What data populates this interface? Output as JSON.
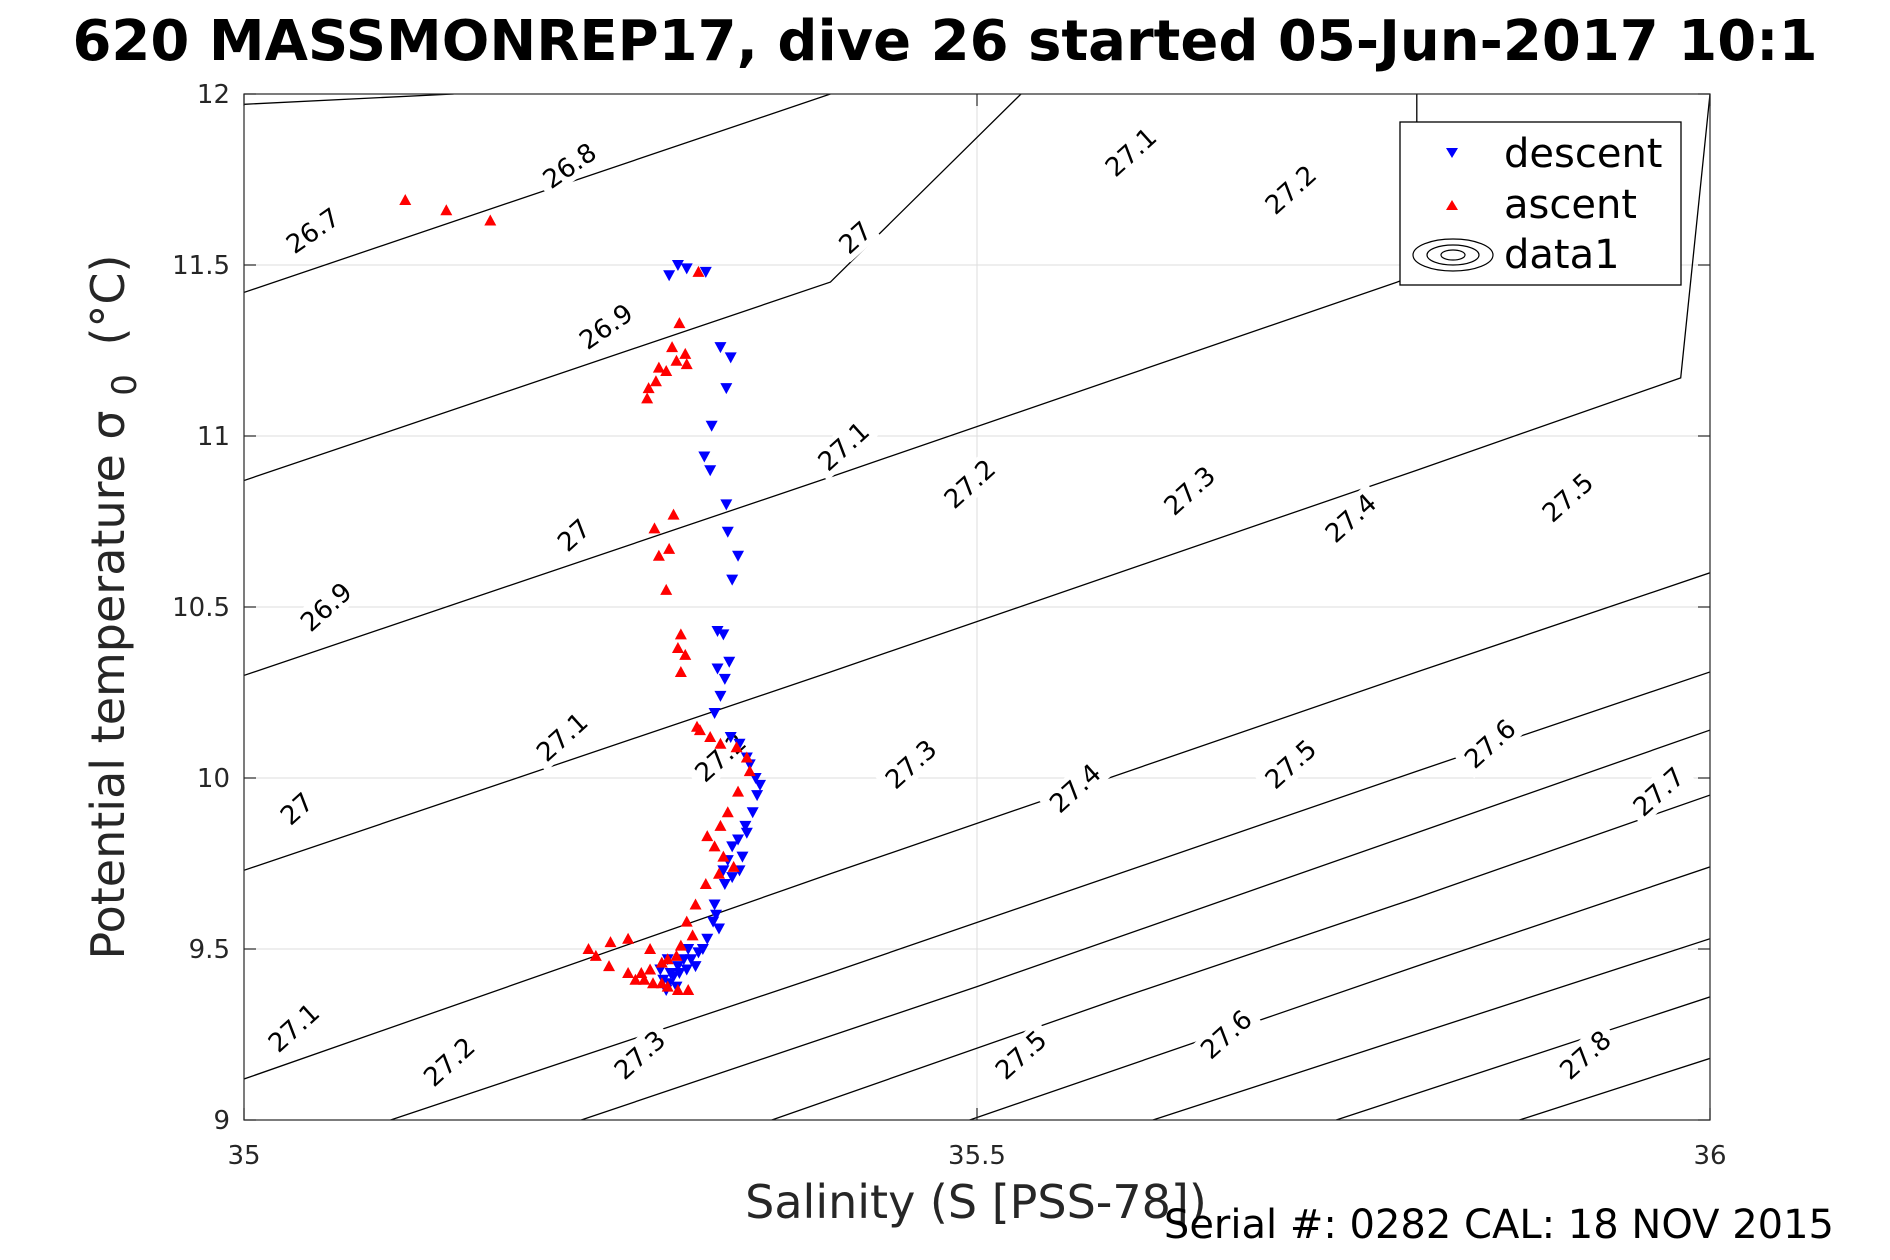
{
  "title": "620 MASSMONREP17, dive 26 started 05-Jun-2017 10:1",
  "footer": "Serial #: 0282  CAL: 18 NOV 2015",
  "chart_data": {
    "type": "scatter",
    "xlabel": "Salinity (S [PSS-78])",
    "ylabel": "Potential temperature σ 0 (°C)",
    "ylabel_main": "Potential temperature σ",
    "ylabel_sub": "0",
    "ylabel_unit": "(°C)",
    "xlim": [
      35,
      36
    ],
    "ylim": [
      9,
      12
    ],
    "xticks": [
      "35",
      "35.5",
      "36"
    ],
    "yticks": [
      "9",
      "9.5",
      "10",
      "10.5",
      "11",
      "11.5",
      "12"
    ],
    "grid": true,
    "legend_position": "top-right",
    "legend": [
      {
        "name": "descent",
        "marker": "triangle-down",
        "color": "#0000ff"
      },
      {
        "name": "ascent",
        "marker": "triangle-up",
        "color": "#ff0000"
      },
      {
        "name": "data1",
        "marker": "contour",
        "color": "#000000"
      }
    ],
    "contours": [
      {
        "level": "26.7",
        "points": [
          [
            35.0,
            11.97
          ],
          [
            35.143,
            12.0
          ]
        ]
      },
      {
        "level": "26.8",
        "points": [
          [
            35.0,
            11.42
          ],
          [
            35.4,
            12.0
          ]
        ]
      },
      {
        "level": "26.9",
        "points": [
          [
            35.0,
            10.87
          ],
          [
            35.4,
            11.45
          ],
          [
            35.53,
            12.0
          ]
        ]
      },
      {
        "level": "27",
        "points": [
          [
            35.0,
            10.3
          ],
          [
            35.4,
            10.88
          ],
          [
            35.8,
            11.47
          ],
          [
            35.8,
            12.0
          ]
        ]
      },
      {
        "level": "27.1",
        "points": [
          [
            35.0,
            9.73
          ],
          [
            35.4,
            10.31
          ],
          [
            35.8,
            10.9
          ],
          [
            35.98,
            11.17
          ],
          [
            36.0,
            12.0
          ]
        ]
      },
      {
        "level": "27.2",
        "points": [
          [
            35.0,
            9.12
          ],
          [
            35.4,
            9.72
          ],
          [
            35.8,
            10.31
          ],
          [
            36.0,
            10.6
          ]
        ]
      },
      {
        "level": "27.3",
        "points": [
          [
            35.1,
            9.0
          ],
          [
            35.4,
            9.43
          ],
          [
            35.8,
            10.02
          ],
          [
            36.0,
            10.31
          ]
        ]
      },
      {
        "level": "27.4",
        "points": [
          [
            35.23,
            9.0
          ],
          [
            35.5,
            9.39
          ],
          [
            35.8,
            9.84
          ],
          [
            36.0,
            10.14
          ]
        ]
      },
      {
        "level": "27.5",
        "points": [
          [
            35.36,
            9.0
          ],
          [
            35.6,
            9.36
          ],
          [
            35.8,
            9.65
          ],
          [
            36.0,
            9.95
          ]
        ]
      },
      {
        "level": "27.6",
        "points": [
          [
            35.495,
            9.0
          ],
          [
            35.8,
            9.45
          ],
          [
            36.0,
            9.74
          ]
        ]
      },
      {
        "level": "27.7",
        "points": [
          [
            35.62,
            9.0
          ],
          [
            36.0,
            9.53
          ]
        ]
      },
      {
        "level": "27.8",
        "points": [
          [
            35.745,
            9.0
          ],
          [
            36.0,
            9.36
          ]
        ]
      },
      {
        "level": "27.9",
        "points": [
          [
            35.87,
            9.0
          ],
          [
            36.0,
            9.18
          ]
        ]
      }
    ],
    "contour_labels": [
      {
        "text": "26.7",
        "x": 35.047,
        "y": 11.6,
        "angle": -35
      },
      {
        "text": "26.8",
        "x": 35.222,
        "y": 11.79,
        "angle": -35
      },
      {
        "text": "26.9",
        "x": 35.247,
        "y": 11.32,
        "angle": -35
      },
      {
        "text": "27",
        "x": 35.417,
        "y": 11.58,
        "angle": -42
      },
      {
        "text": "27.1",
        "x": 35.605,
        "y": 11.83,
        "angle": -42
      },
      {
        "text": "27.2",
        "x": 35.714,
        "y": 11.72,
        "angle": -42
      },
      {
        "text": "26.9",
        "x": 35.056,
        "y": 10.5,
        "angle": -42
      },
      {
        "text": "27",
        "x": 35.225,
        "y": 10.71,
        "angle": -42
      },
      {
        "text": "27.1",
        "x": 35.409,
        "y": 10.97,
        "angle": -42
      },
      {
        "text": "27.2",
        "x": 35.495,
        "y": 10.86,
        "angle": -42
      },
      {
        "text": "27.3",
        "x": 35.645,
        "y": 10.84,
        "angle": -42
      },
      {
        "text": "27.4",
        "x": 35.755,
        "y": 10.76,
        "angle": -42
      },
      {
        "text": "27.5",
        "x": 35.903,
        "y": 10.82,
        "angle": -42
      },
      {
        "text": "27.1",
        "x": 35.217,
        "y": 10.12,
        "angle": -42
      },
      {
        "text": "27",
        "x": 35.036,
        "y": 9.91,
        "angle": -42
      },
      {
        "text": "27.2",
        "x": 35.325,
        "y": 10.06,
        "angle": -42
      },
      {
        "text": "27.3",
        "x": 35.455,
        "y": 10.04,
        "angle": -42
      },
      {
        "text": "27.4",
        "x": 35.567,
        "y": 9.97,
        "angle": -42
      },
      {
        "text": "27.5",
        "x": 35.714,
        "y": 10.04,
        "angle": -42
      },
      {
        "text": "27.6",
        "x": 35.85,
        "y": 10.1,
        "angle": -42
      },
      {
        "text": "27.7",
        "x": 35.965,
        "y": 9.96,
        "angle": -42
      },
      {
        "text": "27.1",
        "x": 35.034,
        "y": 9.27,
        "angle": -42
      },
      {
        "text": "27.2",
        "x": 35.14,
        "y": 9.17,
        "angle": -42
      },
      {
        "text": "27.3",
        "x": 35.27,
        "y": 9.19,
        "angle": -42
      },
      {
        "text": "27.5",
        "x": 35.53,
        "y": 9.19,
        "angle": -42
      },
      {
        "text": "27.6",
        "x": 35.67,
        "y": 9.25,
        "angle": -42
      },
      {
        "text": "27.8",
        "x": 35.915,
        "y": 9.19,
        "angle": -42
      }
    ],
    "series": [
      {
        "name": "descent",
        "marker": "triangle-down",
        "color": "#0000ff",
        "x": [
          35.29,
          35.296,
          35.302,
          35.315,
          35.325,
          35.332,
          35.329,
          35.319,
          35.314,
          35.318,
          35.329,
          35.33,
          35.337,
          35.333,
          35.323,
          35.327,
          35.331,
          35.323,
          35.328,
          35.325,
          35.321,
          35.332,
          35.338,
          35.343,
          35.345,
          35.349,
          35.352,
          35.35,
          35.347,
          35.342,
          35.343,
          35.337,
          35.333,
          35.34,
          35.33,
          35.327,
          35.333,
          35.338,
          35.328,
          35.321,
          35.322,
          35.32,
          35.324,
          35.316,
          35.313,
          35.31,
          35.305,
          35.308,
          35.302,
          35.297,
          35.293,
          35.29,
          35.288,
          35.286,
          35.291,
          35.296,
          35.3,
          35.303,
          35.289,
          35.284,
          35.295
        ],
        "y": [
          11.47,
          11.5,
          11.49,
          11.48,
          11.26,
          11.23,
          11.14,
          11.03,
          10.94,
          10.9,
          10.8,
          10.72,
          10.65,
          10.58,
          10.43,
          10.42,
          10.34,
          10.32,
          10.29,
          10.24,
          10.19,
          10.12,
          10.1,
          10.06,
          10.04,
          10.0,
          9.98,
          9.95,
          9.9,
          9.86,
          9.84,
          9.82,
          9.8,
          9.77,
          9.76,
          9.73,
          9.71,
          9.73,
          9.69,
          9.63,
          9.6,
          9.58,
          9.56,
          9.53,
          9.5,
          9.49,
          9.47,
          9.45,
          9.44,
          9.43,
          9.42,
          9.4,
          9.38,
          9.41,
          9.43,
          9.45,
          9.47,
          9.5,
          9.47,
          9.44,
          9.39
        ]
      },
      {
        "name": "ascent",
        "marker": "triangle-up",
        "color": "#ff0000",
        "x": [
          35.11,
          35.138,
          35.168,
          35.31,
          35.297,
          35.292,
          35.283,
          35.295,
          35.301,
          35.302,
          35.288,
          35.281,
          35.276,
          35.275,
          35.28,
          35.293,
          35.29,
          35.283,
          35.288,
          35.298,
          35.296,
          35.301,
          35.298,
          35.309,
          35.311,
          35.318,
          35.325,
          35.336,
          35.343,
          35.345,
          35.337,
          35.33,
          35.325,
          35.316,
          35.321,
          35.327,
          35.334,
          35.324,
          35.315,
          35.308,
          35.302,
          35.306,
          35.298,
          35.295,
          35.285,
          35.277,
          35.271,
          35.267,
          35.279,
          35.289,
          35.296,
          35.285,
          35.273,
          35.262,
          35.249,
          35.24,
          35.235,
          35.25,
          35.262,
          35.277,
          35.289,
          35.303
        ],
        "y": [
          11.69,
          11.66,
          11.63,
          11.48,
          11.33,
          11.26,
          11.2,
          11.22,
          11.24,
          11.21,
          11.19,
          11.16,
          11.14,
          11.11,
          10.73,
          10.77,
          10.67,
          10.65,
          10.55,
          10.42,
          10.38,
          10.36,
          10.31,
          10.15,
          10.14,
          10.12,
          10.1,
          10.09,
          10.06,
          10.02,
          9.96,
          9.9,
          9.86,
          9.83,
          9.8,
          9.77,
          9.74,
          9.72,
          9.69,
          9.63,
          9.58,
          9.54,
          9.51,
          9.48,
          9.46,
          9.44,
          9.43,
          9.41,
          9.4,
          9.39,
          9.38,
          9.4,
          9.41,
          9.43,
          9.45,
          9.48,
          9.5,
          9.52,
          9.53,
          9.5,
          9.47,
          9.38
        ]
      }
    ]
  }
}
